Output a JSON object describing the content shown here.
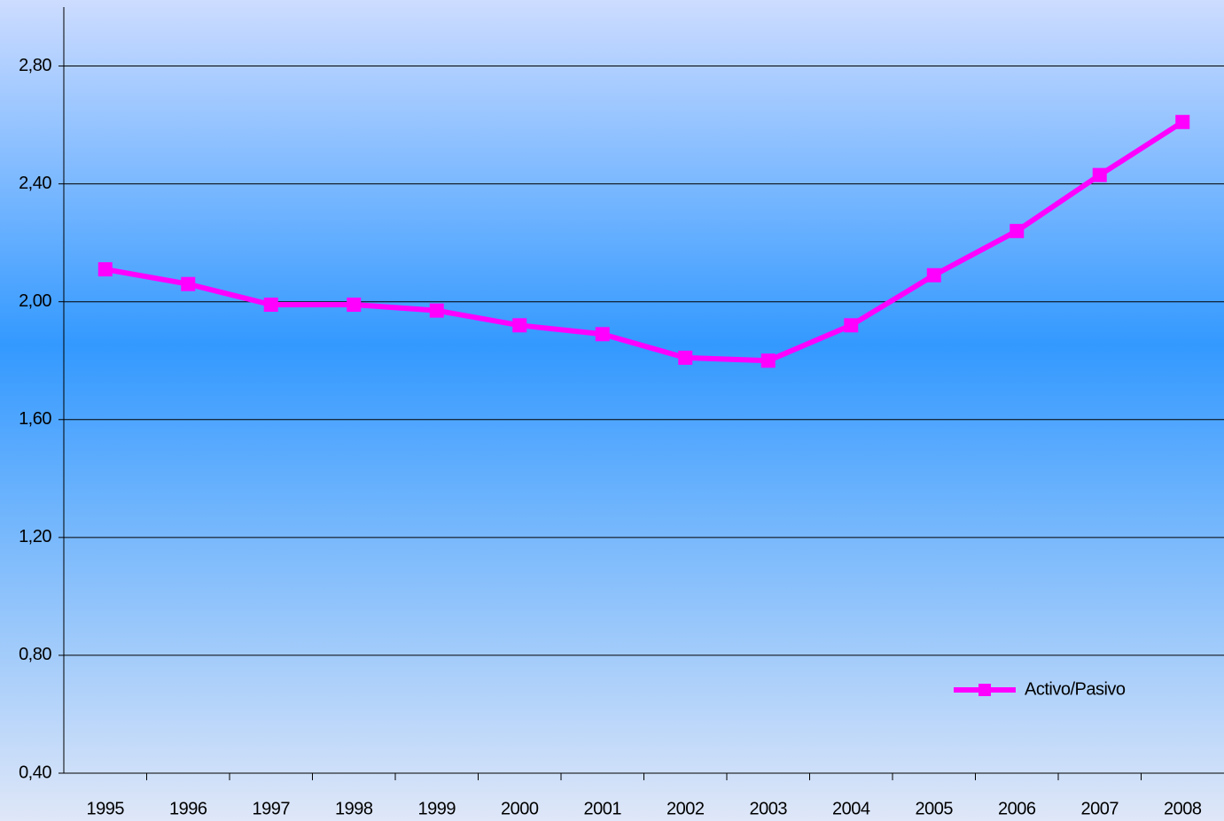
{
  "chart_data": {
    "type": "line",
    "categories": [
      "1995",
      "1996",
      "1997",
      "1998",
      "1999",
      "2000",
      "2001",
      "2002",
      "2003",
      "2004",
      "2005",
      "2006",
      "2007",
      "2008"
    ],
    "series": [
      {
        "name": "Activo/Pasivo",
        "color": "#ff00ff",
        "values": [
          2.11,
          2.06,
          1.99,
          1.99,
          1.97,
          1.92,
          1.89,
          1.81,
          1.8,
          1.92,
          2.09,
          2.24,
          2.43,
          2.61
        ]
      }
    ],
    "ylim": [
      0.4,
      3.0
    ],
    "yticks": [
      {
        "value": 0.4,
        "label": "0,40"
      },
      {
        "value": 0.8,
        "label": "0,80"
      },
      {
        "value": 1.2,
        "label": "1,20"
      },
      {
        "value": 1.6,
        "label": "1,60"
      },
      {
        "value": 2.0,
        "label": "2,00"
      },
      {
        "value": 2.4,
        "label": "2,40"
      },
      {
        "value": 2.8,
        "label": "2,80"
      }
    ],
    "grid": true,
    "legend": "lower right"
  }
}
